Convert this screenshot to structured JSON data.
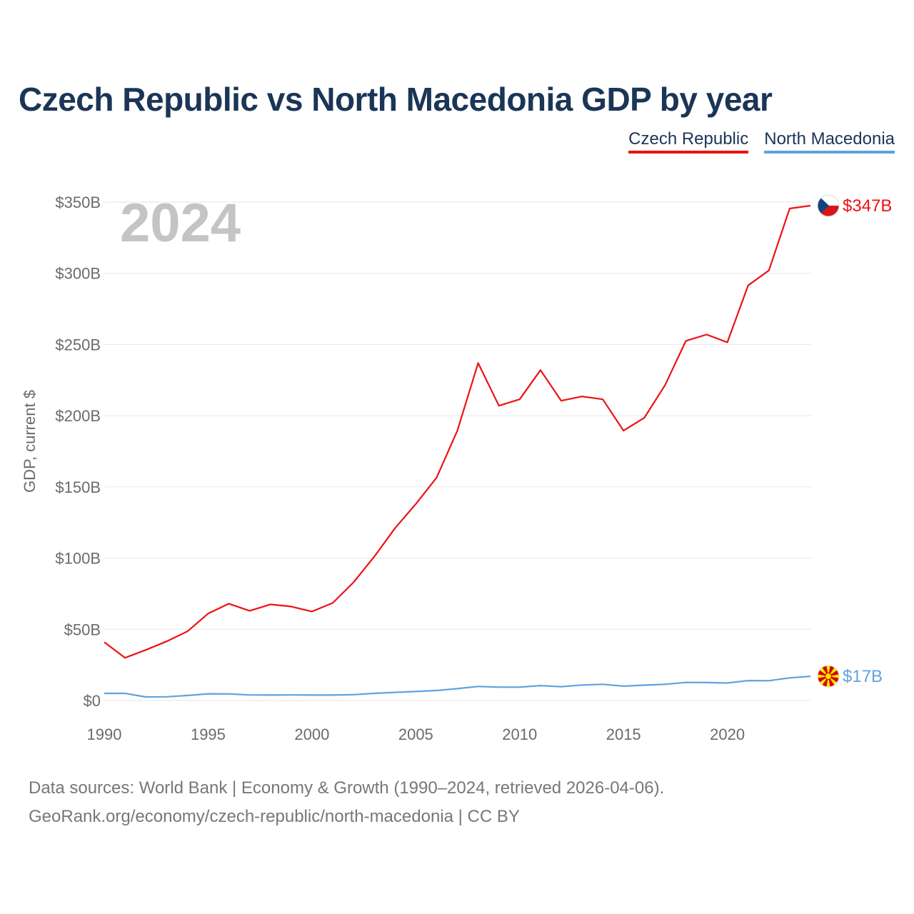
{
  "title": "Czech Republic vs North Macedonia GDP by year",
  "legend": [
    {
      "label": "Czech Republic",
      "color": "#ee1111"
    },
    {
      "label": "North Macedonia",
      "color": "#5fa2e0"
    }
  ],
  "year_label": "2024",
  "source_line1": "Data sources: World Bank | Economy & Growth (1990–2024, retrieved 2026-04-06).",
  "source_line2": "GeoRank.org/economy/czech-republic/north-macedonia | CC BY",
  "chart_data": {
    "type": "line",
    "title": "Czech Republic vs North Macedonia GDP by year",
    "ylabel": "GDP, current $",
    "xlabel": "",
    "xlim": [
      1990,
      2024
    ],
    "ylim": [
      0,
      350
    ],
    "yunit": "billion USD",
    "xticks": [
      1990,
      1995,
      2000,
      2005,
      2010,
      2015,
      2020
    ],
    "yticks": [
      {
        "value": 0,
        "label": "$0"
      },
      {
        "value": 50,
        "label": "$50B"
      },
      {
        "value": 100,
        "label": "$100B"
      },
      {
        "value": 150,
        "label": "$150B"
      },
      {
        "value": 200,
        "label": "$200B"
      },
      {
        "value": 250,
        "label": "$250B"
      },
      {
        "value": 300,
        "label": "$300B"
      },
      {
        "value": 350,
        "label": "$350B"
      }
    ],
    "x": [
      1990,
      1991,
      1992,
      1993,
      1994,
      1995,
      1996,
      1997,
      1998,
      1999,
      2000,
      2001,
      2002,
      2003,
      2004,
      2005,
      2006,
      2007,
      2008,
      2009,
      2010,
      2011,
      2012,
      2013,
      2014,
      2015,
      2016,
      2017,
      2018,
      2019,
      2020,
      2021,
      2022,
      2023,
      2024
    ],
    "series": [
      {
        "name": "Czech Republic",
        "color": "#ee1111",
        "end_label": "$347B",
        "values": [
          41,
          30,
          35.5,
          41.5,
          48.5,
          61,
          68,
          63,
          67.5,
          66,
          62.5,
          68.5,
          83,
          101,
          121,
          138,
          156.5,
          189.5,
          237,
          207,
          211.5,
          232,
          210.5,
          213.5,
          211.5,
          189.5,
          198.5,
          221.5,
          252.5,
          257,
          251.5,
          291.5,
          302,
          345.5,
          347.5
        ]
      },
      {
        "name": "North Macedonia",
        "color": "#5fa2e0",
        "end_label": "$17B",
        "values": [
          5,
          5,
          2.5,
          2.6,
          3.5,
          4.7,
          4.6,
          3.9,
          3.8,
          3.9,
          3.8,
          3.8,
          4.1,
          5,
          5.7,
          6.3,
          7,
          8.3,
          9.9,
          9.4,
          9.4,
          10.5,
          9.7,
          10.9,
          11.4,
          10.1,
          10.8,
          11.4,
          12.7,
          12.6,
          12.3,
          14,
          13.9,
          15.9,
          17
        ]
      }
    ]
  }
}
